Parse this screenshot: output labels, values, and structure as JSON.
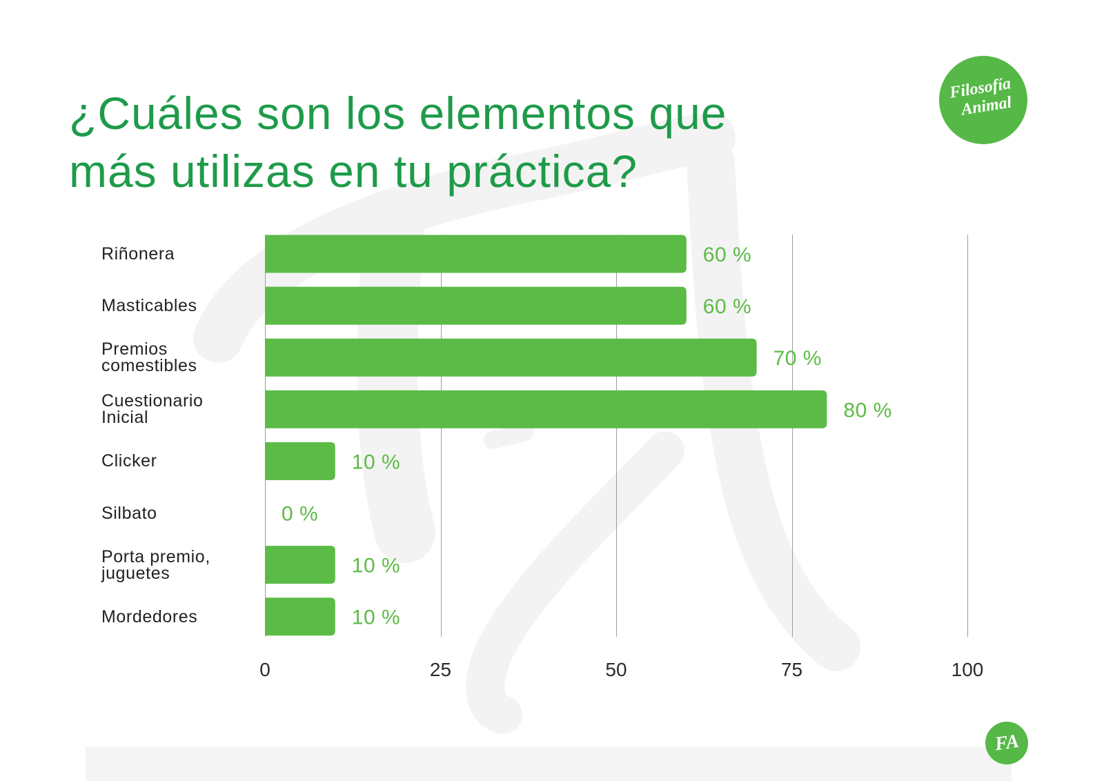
{
  "colors": {
    "title": "#1e9b4a",
    "bar": "#5cbb46",
    "data_label": "#5cbb46",
    "brand": "#56b847",
    "gridline": "#9c9c9c",
    "watermark": "#f3f3f3",
    "footer_band": "#f4f4f4"
  },
  "logo": {
    "icon": "filosofia-animal-logo",
    "line1": "Filosofía",
    "line2": "Animal"
  },
  "footer_logo": {
    "icon": "fa-monogram-logo",
    "text": "FA"
  },
  "chart_data": {
    "type": "bar",
    "orientation": "horizontal",
    "title": "¿Cuáles son los elementos que\nmás utilizas en tu práctica?",
    "xlabel": "",
    "ylabel": "",
    "categories": [
      "Riñonera",
      "Masticables",
      "Premios\ncomestibles",
      "Cuestionario\nInicial",
      "Clicker",
      "Silbato",
      "Porta premio,\njuguetes",
      "Mordedores"
    ],
    "values": [
      60,
      60,
      70,
      80,
      10,
      0,
      10,
      10
    ],
    "data_labels": [
      "60 %",
      "60 %",
      "70 %",
      "80 %",
      "10 %",
      "0 %",
      "10 %",
      "10 %"
    ],
    "xlim": [
      0,
      100
    ],
    "xticks": [
      0,
      25,
      50,
      75,
      100
    ],
    "grid": true,
    "legend": "none"
  }
}
